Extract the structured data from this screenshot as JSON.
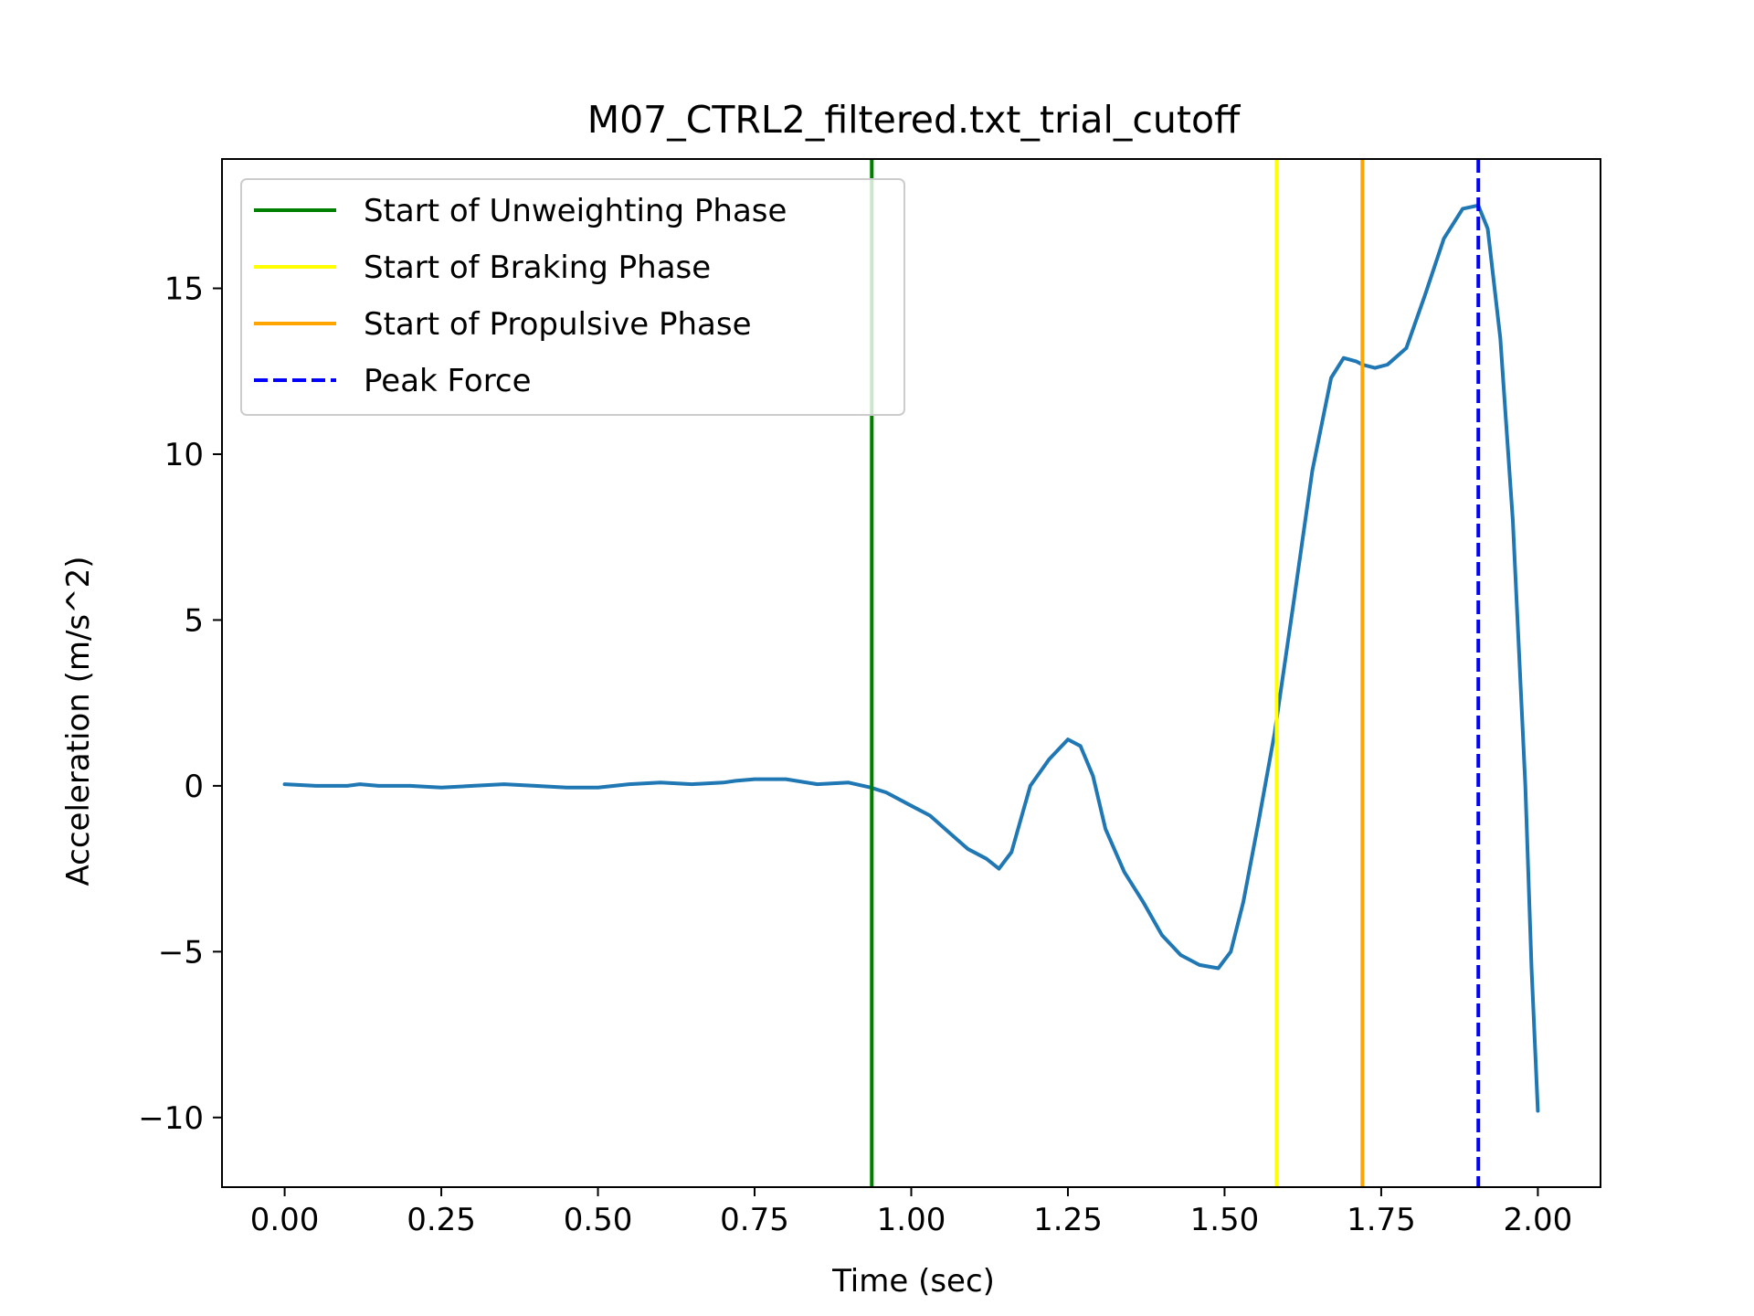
{
  "chart_data": {
    "type": "line",
    "title": "M07_CTRL2_filtered.txt_trial_cutoff",
    "xlabel": "Time (sec)",
    "ylabel": "Acceleration (m/s^2)",
    "xlim": [
      -0.1,
      2.1
    ],
    "ylim": [
      -12.1,
      18.9
    ],
    "x_ticks": [
      0.0,
      0.25,
      0.5,
      0.75,
      1.0,
      1.25,
      1.5,
      1.75,
      2.0
    ],
    "x_tick_labels": [
      "0.00",
      "0.25",
      "0.50",
      "0.75",
      "1.00",
      "1.25",
      "1.50",
      "1.75",
      "2.00"
    ],
    "y_ticks": [
      -10,
      -5,
      0,
      5,
      10,
      15
    ],
    "y_tick_labels": [
      "−10",
      "−5",
      "0",
      "5",
      "10",
      "15"
    ],
    "grid": false,
    "legend_position": "top-left",
    "series": [
      {
        "color": "#1f77b4",
        "x": [
          0.0,
          0.05,
          0.1,
          0.12,
          0.15,
          0.2,
          0.25,
          0.3,
          0.35,
          0.4,
          0.45,
          0.5,
          0.55,
          0.6,
          0.65,
          0.7,
          0.72,
          0.75,
          0.8,
          0.85,
          0.9,
          0.935,
          0.96,
          1.0,
          1.03,
          1.06,
          1.09,
          1.12,
          1.14,
          1.16,
          1.19,
          1.22,
          1.25,
          1.27,
          1.29,
          1.31,
          1.34,
          1.37,
          1.4,
          1.43,
          1.46,
          1.49,
          1.51,
          1.53,
          1.555,
          1.58,
          1.61,
          1.64,
          1.67,
          1.69,
          1.71,
          1.72,
          1.74,
          1.76,
          1.79,
          1.82,
          1.85,
          1.88,
          1.905,
          1.92,
          1.94,
          1.96,
          1.98,
          1.99,
          2.0
        ],
        "y": [
          0.05,
          0.0,
          0.0,
          0.05,
          0.0,
          0.0,
          -0.05,
          0.0,
          0.05,
          0.0,
          -0.05,
          -0.05,
          0.05,
          0.1,
          0.05,
          0.1,
          0.15,
          0.2,
          0.2,
          0.05,
          0.1,
          -0.05,
          -0.2,
          -0.6,
          -0.9,
          -1.4,
          -1.9,
          -2.2,
          -2.5,
          -2.0,
          0.0,
          0.8,
          1.4,
          1.2,
          0.3,
          -1.3,
          -2.6,
          -3.5,
          -4.5,
          -5.1,
          -5.4,
          -5.5,
          -5.0,
          -3.5,
          -1.0,
          1.6,
          5.5,
          9.5,
          12.3,
          12.9,
          12.8,
          12.7,
          12.6,
          12.7,
          13.2,
          14.8,
          16.5,
          17.4,
          17.5,
          16.8,
          13.5,
          8.0,
          0.0,
          -5.5,
          -9.8
        ]
      }
    ],
    "vlines": [
      {
        "x": 0.937,
        "color": "#008000",
        "style": "solid",
        "label": "Start of Unweighting Phase"
      },
      {
        "x": 1.583,
        "color": "#ffff00",
        "style": "solid",
        "label": "Start of Braking Phase"
      },
      {
        "x": 1.72,
        "color": "#ffa500",
        "style": "solid",
        "label": "Start of Propulsive Phase"
      },
      {
        "x": 1.905,
        "color": "#0000ff",
        "style": "dashed",
        "label": "Peak Force"
      }
    ]
  }
}
